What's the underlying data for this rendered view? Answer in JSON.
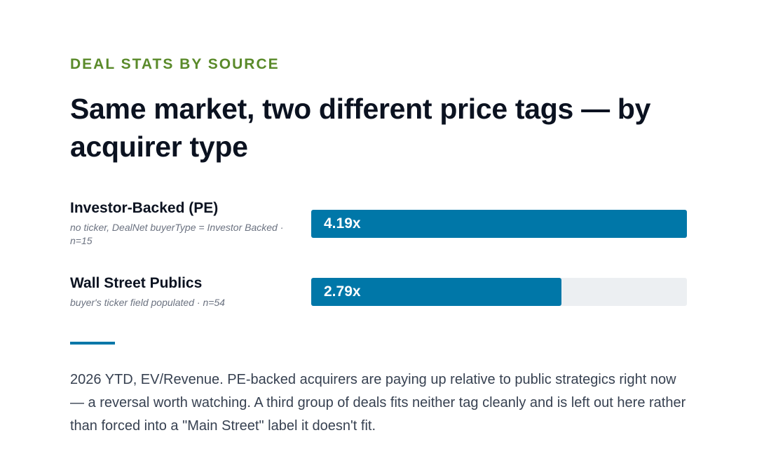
{
  "eyebrow": "DEAL STATS BY SOURCE",
  "title": "Same market, two different price tags — by acquirer type",
  "chart_data": {
    "type": "bar",
    "orientation": "horizontal",
    "categories": [
      "Investor-Backed (PE)",
      "Wall Street Publics"
    ],
    "values": [
      4.19,
      2.79
    ],
    "value_labels": [
      "4.19x",
      "2.79x"
    ],
    "subtitles": [
      "no ticker, DealNet buyerType = Investor Backed · n=15",
      "buyer's ticker field populated · n=54"
    ],
    "xlim": [
      0,
      4.19
    ],
    "colors": {
      "bar": "#0077a8",
      "track": "#eceff2"
    }
  },
  "caption": "2026 YTD, EV/Revenue. PE-backed acquirers are paying up relative to public strategics right now — a reversal worth watching. A third group of deals fits neither tag cleanly and is left out here rather than forced into a \"Main Street\" label it doesn't fit."
}
